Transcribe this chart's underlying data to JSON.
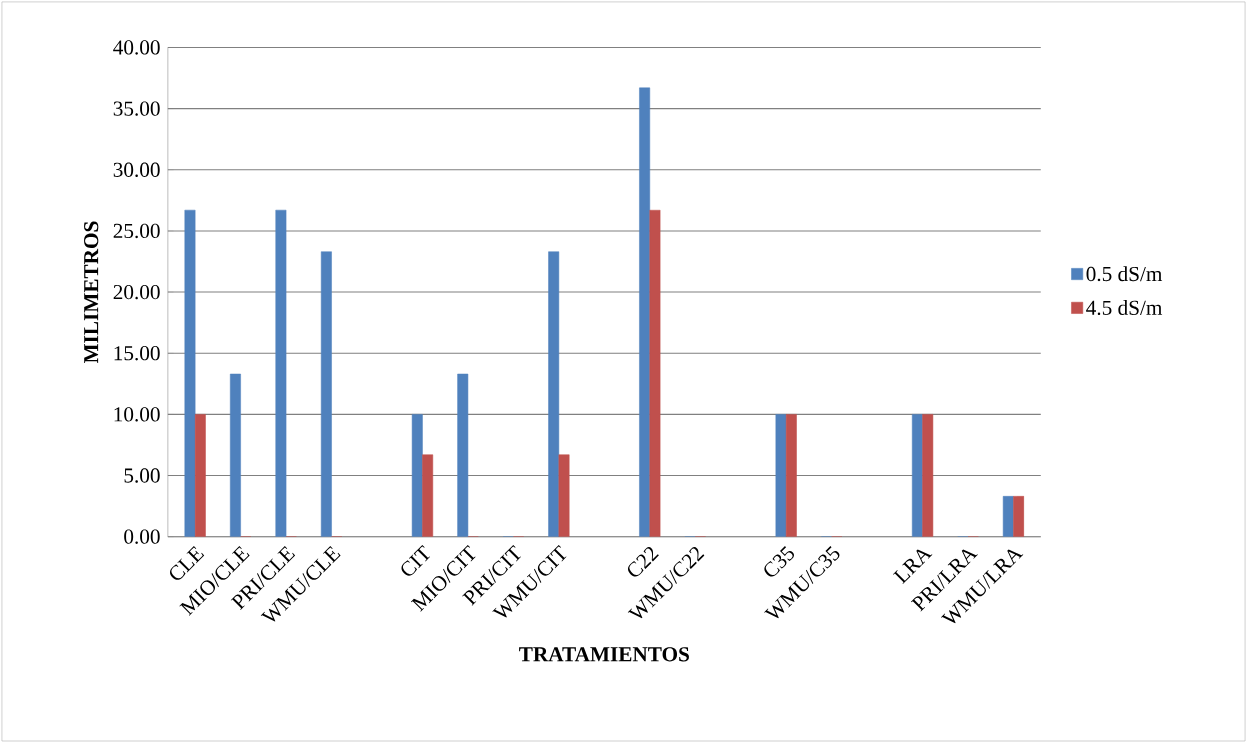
{
  "chart_data": {
    "type": "bar",
    "xlabel": "TRATAMIENTOS",
    "ylabel": "MILIMETROS",
    "categories": [
      "CLE",
      "MIO/CLE",
      "PRI/CLE",
      "WMU/CLE",
      null,
      "CIT",
      "MIO/CIT",
      "PRI/CIT",
      "WMU/CIT",
      null,
      "C22",
      "WMU/C22",
      null,
      "C35",
      "WMU/C35",
      null,
      "LRA",
      "PRI/LRA",
      "WMU/LRA"
    ],
    "series": [
      {
        "name": "0.5 dS/m",
        "color": "#4f81bd",
        "values": [
          26.7,
          13.3,
          26.7,
          23.3,
          null,
          10,
          13.3,
          0,
          23.3,
          null,
          36.7,
          0,
          null,
          10,
          0,
          null,
          10,
          0,
          3.3
        ]
      },
      {
        "name": "4.5 dS/m",
        "color": "#c0504d",
        "values": [
          10,
          0,
          0,
          0,
          null,
          6.7,
          0,
          0,
          6.7,
          null,
          26.7,
          0,
          null,
          10,
          0,
          null,
          10,
          0,
          3.3
        ]
      }
    ],
    "ylim": [
      0,
      40
    ],
    "yticks": [
      {
        "value": 0,
        "label": "0.00"
      },
      {
        "value": 5,
        "label": "5.00"
      },
      {
        "value": 10,
        "label": "10.00"
      },
      {
        "value": 15,
        "label": "15.00"
      },
      {
        "value": 20,
        "label": "20.00"
      },
      {
        "value": 25,
        "label": "25.00"
      },
      {
        "value": 30,
        "label": "30.00"
      },
      {
        "value": 35,
        "label": "35.00"
      },
      {
        "value": 40,
        "label": "40.00"
      }
    ],
    "grid": "y",
    "legend": "right"
  }
}
